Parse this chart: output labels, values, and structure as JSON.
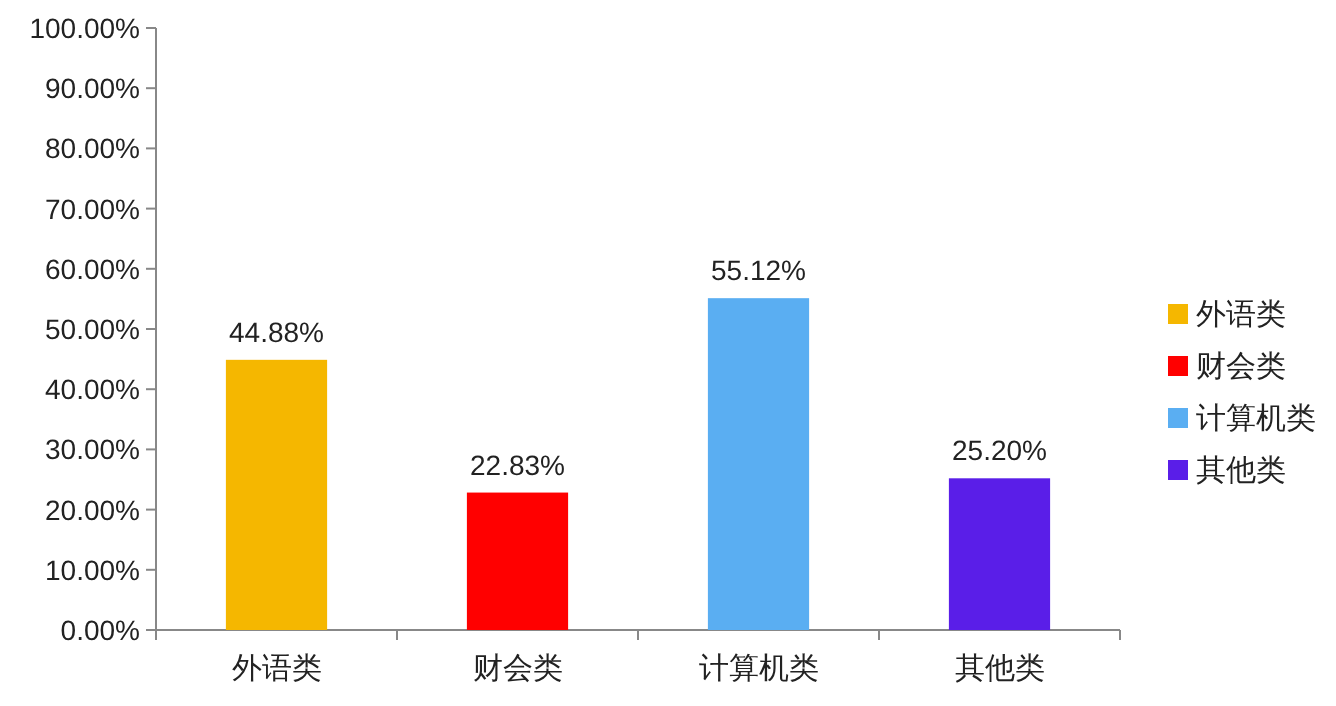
{
  "chart_data": {
    "type": "bar",
    "categories": [
      "外语类",
      "财会类",
      "计算机类",
      "其他类"
    ],
    "stacked": true,
    "series": [
      {
        "name": "外语类",
        "color": "#f5b700",
        "values": [
          44.88,
          null,
          null,
          null
        ],
        "value_labels": [
          "44.88%",
          null,
          null,
          null
        ]
      },
      {
        "name": "财会类",
        "color": "#ff0000",
        "values": [
          null,
          22.83,
          null,
          null
        ],
        "value_labels": [
          null,
          "22.83%",
          null,
          null
        ]
      },
      {
        "name": "计算机类",
        "color": "#5aaef2",
        "values": [
          null,
          null,
          55.12,
          null
        ],
        "value_labels": [
          null,
          null,
          "55.12%",
          null
        ]
      },
      {
        "name": "其他类",
        "color": "#5a1ee8",
        "values": [
          null,
          null,
          null,
          25.2
        ],
        "value_labels": [
          null,
          null,
          null,
          "25.20%"
        ]
      }
    ],
    "ylim": [
      0,
      100
    ],
    "yticks": [
      {
        "value": 0,
        "label": "0.00%"
      },
      {
        "value": 10,
        "label": "10.00%"
      },
      {
        "value": 20,
        "label": "20.00%"
      },
      {
        "value": 30,
        "label": "30.00%"
      },
      {
        "value": 40,
        "label": "40.00%"
      },
      {
        "value": 50,
        "label": "50.00%"
      },
      {
        "value": 60,
        "label": "60.00%"
      },
      {
        "value": 70,
        "label": "70.00%"
      },
      {
        "value": 80,
        "label": "80.00%"
      },
      {
        "value": 90,
        "label": "90.00%"
      },
      {
        "value": 100,
        "label": "100.00%"
      }
    ],
    "grid": false,
    "legend": "right"
  }
}
